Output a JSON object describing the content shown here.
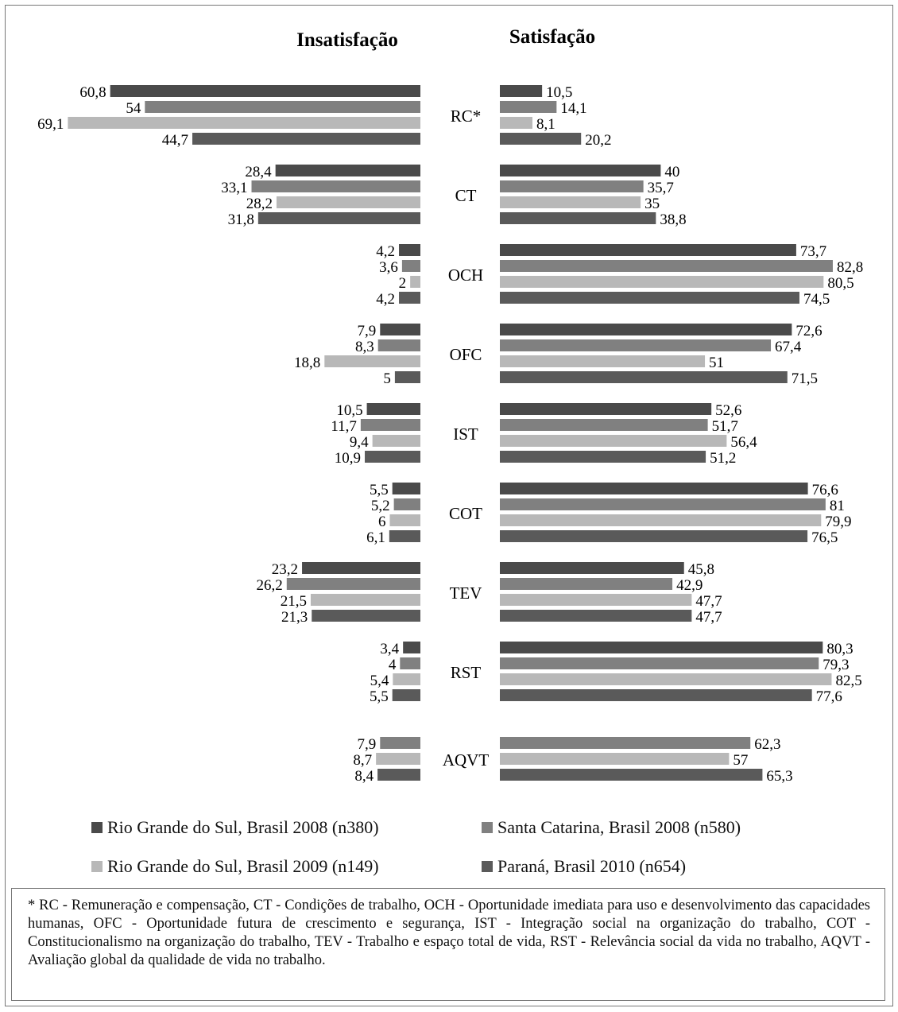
{
  "chart_data": {
    "type": "bar",
    "orientation": "horizontal-diverging",
    "titles": {
      "left": "Insatisfação",
      "right": "Satisfação"
    },
    "categories": [
      "RC*",
      "CT",
      "OCH",
      "OFC",
      "IST",
      "COT",
      "TEV",
      "RST",
      "AQVT"
    ],
    "series": [
      {
        "name": "Rio Grande do Sul, Brasil 2008 (n380)",
        "color": "#4a4a4a",
        "insatisfacao": [
          "60,8",
          "28,4",
          "4,2",
          "7,9",
          "10,5",
          "5,5",
          "23,2",
          "3,4",
          null
        ],
        "satisfacao": [
          "10,5",
          "40",
          "73,7",
          "72,6",
          "52,6",
          "76,6",
          "45,8",
          "80,3",
          null
        ]
      },
      {
        "name": "Santa Catarina, Brasil 2008 (n580)",
        "color": "#808080",
        "insatisfacao": [
          "54",
          "33,1",
          "3,6",
          "8,3",
          "11,7",
          "5,2",
          "26,2",
          "4",
          "7,9"
        ],
        "satisfacao": [
          "14,1",
          "35,7",
          "82,8",
          "67,4",
          "51,7",
          "81",
          "42,9",
          "79,3",
          "62,3"
        ]
      },
      {
        "name": "Rio Grande do Sul, Brasil 2009 (n149)",
        "color": "#b8b8b8",
        "insatisfacao": [
          "69,1",
          "28,2",
          "2",
          "18,8",
          "9,4",
          "6",
          "21,5",
          "5,4",
          "8,7"
        ],
        "satisfacao": [
          "8,1",
          "35",
          "80,5",
          "51",
          "56,4",
          "79,9",
          "47,7",
          "82,5",
          "57"
        ]
      },
      {
        "name": "Paraná, Brasil 2010 (n654)",
        "color": "#5a5a5a",
        "insatisfacao": [
          "44,7",
          "31,8",
          "4,2",
          "5",
          "10,9",
          "6,1",
          "21,3",
          "5,5",
          "8,4"
        ],
        "satisfacao": [
          "20,2",
          "38,8",
          "74,5",
          "71,5",
          "51,2",
          "76,5",
          "47,7",
          "77,6",
          "65,3"
        ]
      }
    ]
  },
  "legend": [
    "Rio Grande do Sul, Brasil 2008 (n380)",
    "Santa Catarina, Brasil 2008 (n580)",
    "Rio Grande do Sul, Brasil 2009 (n149)",
    "Paraná, Brasil 2010 (n654)"
  ],
  "footnote": "* RC - Remuneração e compensação, CT - Condições de trabalho, OCH - Oportunidade imediata para uso e desenvolvimento das capacidades humanas, OFC - Oportunidade futura de crescimento e segurança, IST - Integração social na organização do trabalho, COT - Constitucionalismo na organização do trabalho, TEV - Trabalho e espaço total de vida, RST - Relevância social da vida no trabalho, AQVT - Avaliação global da qualidade de vida no trabalho."
}
